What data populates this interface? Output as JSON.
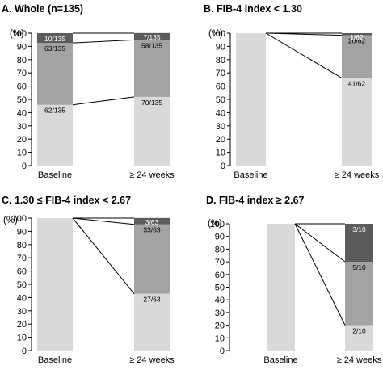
{
  "colors": {
    "bar_light": "#d9d9d9",
    "bar_mid": "#a3a3a3",
    "bar_dark": "#5c5c5c",
    "axis": "#000000",
    "connector": "#000000"
  },
  "chart_data": [
    {
      "type": "bar",
      "title": "A. Whole (n=135)",
      "ylabel": "(%)",
      "ylim": [
        0,
        100
      ],
      "yticks": [
        0,
        10,
        20,
        30,
        40,
        50,
        60,
        70,
        80,
        90,
        100
      ],
      "categories": [
        "Baseline",
        "≥ 24 weeks"
      ],
      "series": [
        {
          "values": [
            45.9,
            51.9
          ],
          "labels": [
            "62/135",
            "70/135"
          ],
          "color": "light"
        },
        {
          "values": [
            46.7,
            43.0
          ],
          "labels": [
            "63/135",
            "58/135"
          ],
          "color": "mid"
        },
        {
          "values": [
            7.4,
            5.2
          ],
          "labels": [
            "10/135",
            "7/135"
          ],
          "color": "dark"
        }
      ],
      "connectors": [
        [
          0,
          1,
          0,
          1
        ],
        [
          1,
          2,
          1,
          2
        ]
      ],
      "stacked": true
    },
    {
      "type": "bar",
      "title": "B. FIB-4 index < 1.30",
      "ylabel": "(%)",
      "ylim": [
        0,
        100
      ],
      "yticks": [
        0,
        10,
        20,
        30,
        40,
        50,
        60,
        70,
        80,
        90,
        100
      ],
      "categories": [
        "Baseline",
        "≥ 24 weeks"
      ],
      "series": [
        {
          "values": [
            100,
            66.1
          ],
          "labels": [
            "",
            "41/62"
          ],
          "color": "light"
        },
        {
          "values": [
            0,
            32.3
          ],
          "labels": [
            "",
            "20/62"
          ],
          "color": "mid"
        },
        {
          "values": [
            0,
            1.6
          ],
          "labels": [
            "",
            "1/62"
          ],
          "color": "dark"
        }
      ],
      "connectors": [
        [
          0,
          0,
          1,
          1
        ],
        [
          0,
          0,
          1,
          2
        ]
      ],
      "stacked": true
    },
    {
      "type": "bar",
      "title": "C. 1.30 ≤ FIB-4 index < 2.67",
      "ylabel": "(%)",
      "ylim": [
        0,
        100
      ],
      "yticks": [
        0,
        10,
        20,
        30,
        40,
        50,
        60,
        70,
        80,
        90,
        100
      ],
      "categories": [
        "Baseline",
        "≥ 24 weeks"
      ],
      "series": [
        {
          "values": [
            100,
            42.9
          ],
          "labels": [
            "",
            "27/63"
          ],
          "color": "light"
        },
        {
          "values": [
            0,
            52.4
          ],
          "labels": [
            "",
            "33/63"
          ],
          "color": "mid"
        },
        {
          "values": [
            0,
            4.8
          ],
          "labels": [
            "",
            "3/63"
          ],
          "color": "dark"
        }
      ],
      "connectors": [
        [
          0,
          0,
          1,
          1
        ],
        [
          0,
          0,
          1,
          2
        ]
      ],
      "stacked": true
    },
    {
      "type": "bar",
      "title": "D. FIB-4 index ≥ 2.67",
      "ylabel": "(%)",
      "ylim": [
        0,
        100
      ],
      "yticks": [
        0,
        10,
        20,
        30,
        40,
        50,
        60,
        70,
        80,
        90,
        100
      ],
      "categories": [
        "Baseline",
        "≥ 24 weeks"
      ],
      "series": [
        {
          "values": [
            100,
            20
          ],
          "labels": [
            "",
            "2/10"
          ],
          "color": "light"
        },
        {
          "values": [
            0,
            50
          ],
          "labels": [
            "",
            "5/10"
          ],
          "color": "mid"
        },
        {
          "values": [
            0,
            30
          ],
          "labels": [
            "",
            "3/10"
          ],
          "color": "dark"
        }
      ],
      "connectors": [
        [
          0,
          0,
          1,
          1
        ],
        [
          0,
          0,
          1,
          2
        ]
      ],
      "stacked": true
    }
  ]
}
